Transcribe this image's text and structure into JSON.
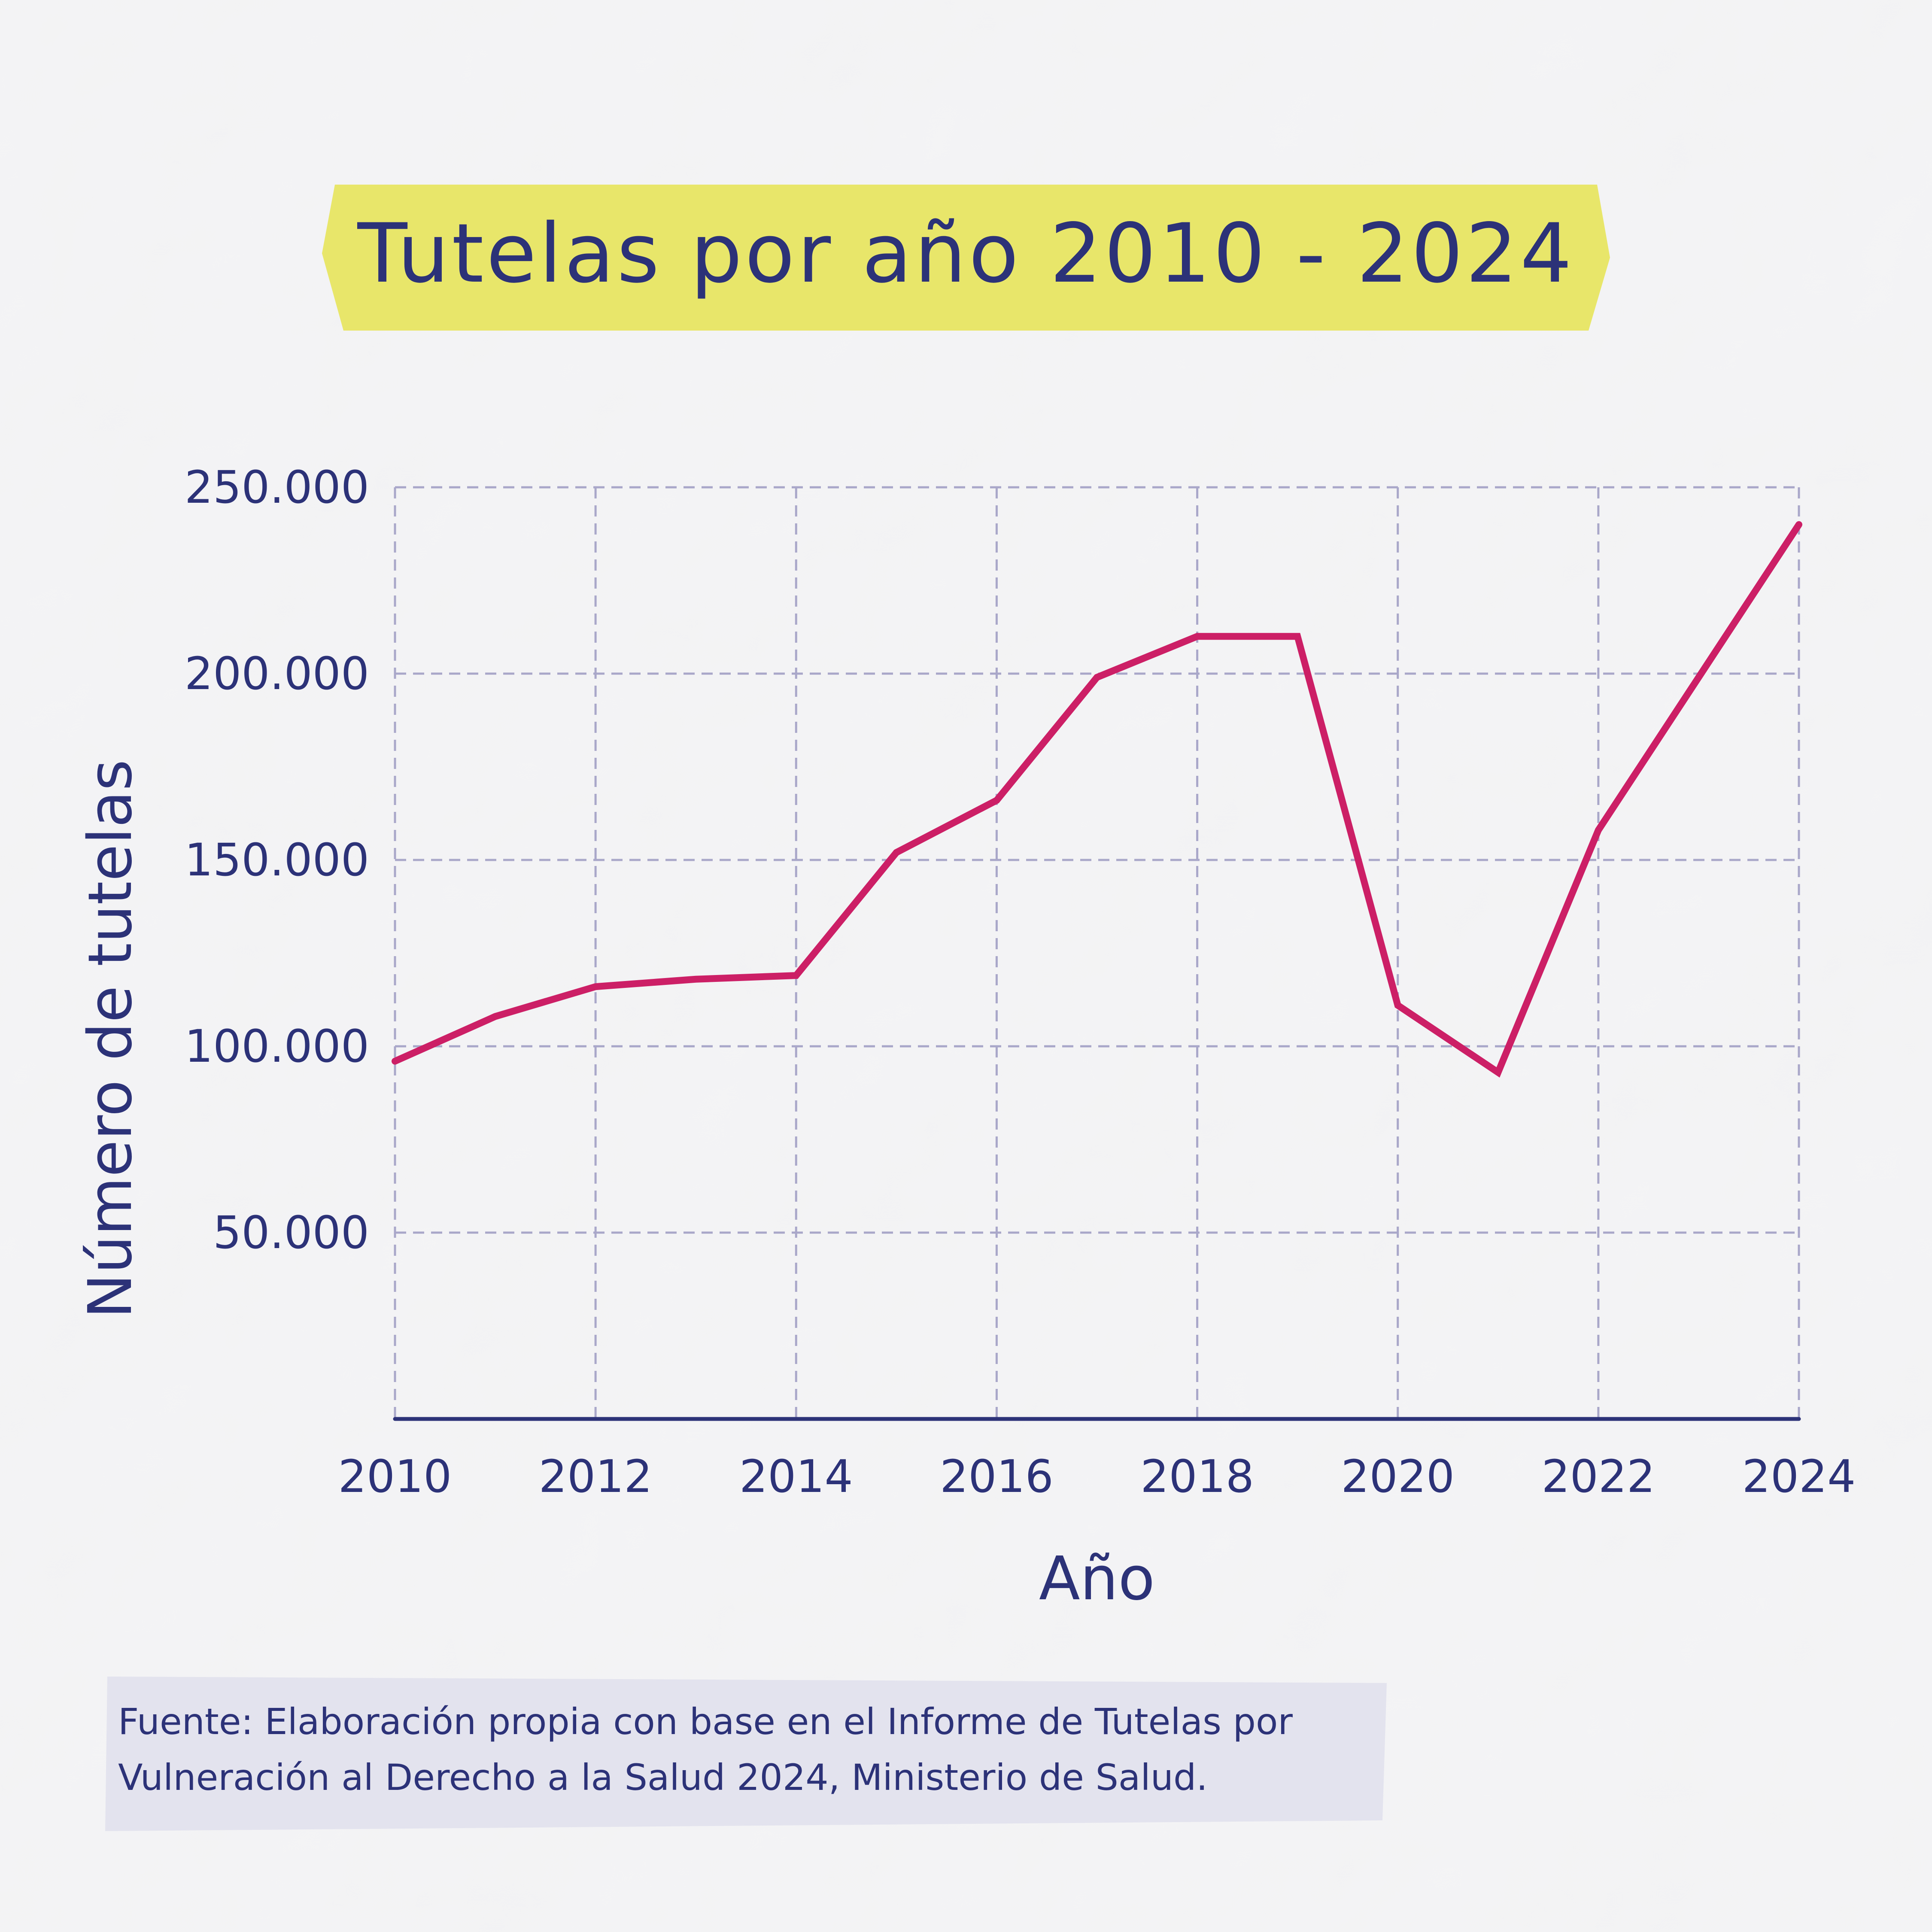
{
  "chart_data": {
    "type": "line",
    "title": "Tutelas por año 2010 - 2024",
    "xlabel": "Año",
    "ylabel": "Número de tutelas",
    "x": [
      2010,
      2011,
      2012,
      2013,
      2014,
      2015,
      2016,
      2017,
      2018,
      2019,
      2020,
      2021,
      2022,
      2023,
      2024
    ],
    "xlim": [
      2010,
      2024
    ],
    "x_tick_labels": [
      "2010",
      "2012",
      "2014",
      "2016",
      "2018",
      "2020",
      "2022",
      "2024"
    ],
    "ylim": [
      0,
      250000
    ],
    "y_tick_values": [
      50000,
      100000,
      150000,
      200000,
      250000
    ],
    "y_tick_labels": [
      "50.000",
      "100.000",
      "150.000",
      "200.000",
      "250.000"
    ],
    "grid": true,
    "series": [
      {
        "values": [
          96000,
          108000,
          116000,
          118000,
          119000,
          152000,
          166000,
          199000,
          210000,
          210000,
          111000,
          93000,
          158000,
          199000,
          240000
        ],
        "color": "#cc1f66"
      }
    ],
    "colors": {
      "line": "#cc1f66",
      "axis": "#2c3278",
      "grid": "#a9a7c9",
      "text": "#2c3278",
      "title_highlight": "#e8e66a",
      "source_box": "#e3e3ee"
    }
  },
  "source_note": {
    "line1": "Fuente: Elaboración propia con base en el Informe de Tutelas por",
    "line2": "Vulneración al Derecho a la Salud 2024, Ministerio de Salud."
  }
}
